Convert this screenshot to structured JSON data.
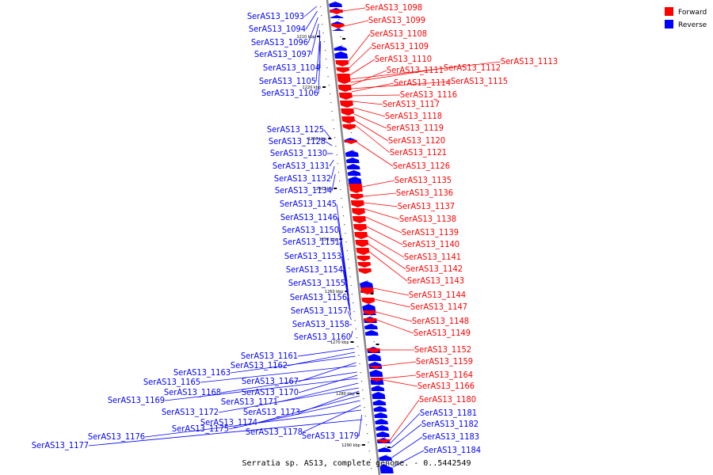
{
  "caption": "Serratia sp. AS13, complete genome. - 0..5442549",
  "legend": [
    {
      "label": "Forward",
      "color": "#ff0000"
    },
    {
      "label": "Reverse",
      "color": "#0000ff"
    }
  ],
  "ticks": [
    "1210 kbp",
    "1220 kbp",
    "1230 kbp",
    "1240 kbp",
    "1250 kbp",
    "1260 kbp",
    "1270 kbp",
    "1280 kbp",
    "1290 kbp"
  ],
  "left_labels": [
    "SerAS13_1093",
    "SerAS13_1094",
    "SerAS13_1096",
    "SerAS13_1097",
    "SerAS13_1104",
    "SerAS13_1105",
    "SerAS13_1106",
    "SerAS13_1125",
    "SerAS13_1128",
    "SerAS13_1130",
    "SerAS13_1131",
    "SerAS13_1132",
    "SerAS13_1134",
    "SerAS13_1145",
    "SerAS13_1146",
    "SerAS13_1150",
    "SerAS13_1151",
    "SerAS13_1153",
    "SerAS13_1154",
    "SerAS13_1155",
    "SerAS13_1156",
    "SerAS13_1157",
    "SerAS13_1158",
    "SerAS13_1160",
    "SerAS13_1161",
    "SerAS13_1162",
    "SerAS13_1163",
    "SerAS13_1167",
    "SerAS13_1165",
    "SerAS13_1168",
    "SerAS13_1170",
    "SerAS13_1169",
    "SerAS13_1171",
    "SerAS13_1172",
    "SerAS13_1173",
    "SerAS13_1174",
    "SerAS13_1175",
    "SerAS13_1178",
    "SerAS13_1176",
    "SerAS13_1179",
    "SerAS13_1177"
  ],
  "right_labels": [
    "SerAS13_1098",
    "SerAS13_1099",
    "SerAS13_1108",
    "SerAS13_1109",
    "SerAS13_1110",
    "SerAS13_1113",
    "SerAS13_1112",
    "SerAS13_1111",
    "SerAS13_1115",
    "SerAS13_1114",
    "SerAS13_1116",
    "SerAS13_1117",
    "SerAS13_1118",
    "SerAS13_1119",
    "SerAS13_1120",
    "SerAS13_1121",
    "SerAS13_1126",
    "SerAS13_1135",
    "SerAS13_1136",
    "SerAS13_1137",
    "SerAS13_1138",
    "SerAS13_1139",
    "SerAS13_1140",
    "SerAS13_1141",
    "SerAS13_1142",
    "SerAS13_1143",
    "SerAS13_1144",
    "SerAS13_1147",
    "SerAS13_1148",
    "SerAS13_1149",
    "SerAS13_1152",
    "SerAS13_1159",
    "SerAS13_1164",
    "SerAS13_1166",
    "SerAS13_1180",
    "SerAS13_1181",
    "SerAS13_1182",
    "SerAS13_1183",
    "SerAS13_1184"
  ]
}
